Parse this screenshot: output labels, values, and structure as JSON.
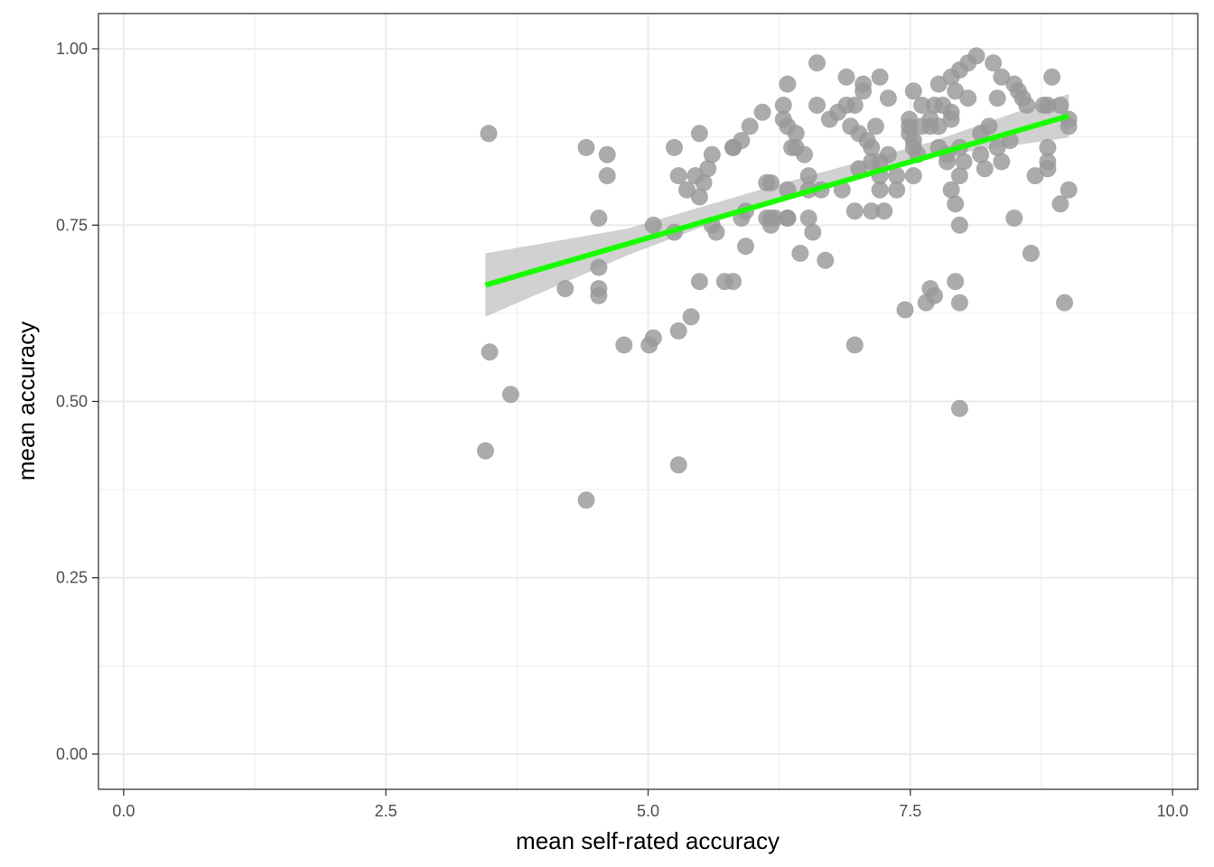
{
  "chart_data": {
    "type": "scatter",
    "title": "",
    "xlabel": "mean self-rated accuracy",
    "ylabel": "mean accuracy",
    "xlim": [
      -0.24,
      10.24
    ],
    "ylim": [
      -0.05,
      1.05
    ],
    "x_ticks": [
      0.0,
      2.5,
      5.0,
      7.5,
      10.0
    ],
    "x_tick_labels": [
      "0.0",
      "2.5",
      "5.0",
      "7.5",
      "10.0"
    ],
    "y_ticks": [
      0.0,
      0.25,
      0.5,
      0.75,
      1.0
    ],
    "y_tick_labels": [
      "0.00",
      "0.25",
      "0.50",
      "0.75",
      "1.00"
    ],
    "grid": true,
    "theme": "bw",
    "point_color": "#999999",
    "line_color": "#19ff00",
    "band_color": "#bdbdbd",
    "points": [
      [
        3.45,
        0.43
      ],
      [
        3.48,
        0.88
      ],
      [
        3.49,
        0.57
      ],
      [
        3.69,
        0.51
      ],
      [
        4.21,
        0.66
      ],
      [
        4.41,
        0.36
      ],
      [
        4.41,
        0.86
      ],
      [
        4.53,
        0.76
      ],
      [
        4.53,
        0.69
      ],
      [
        4.53,
        0.66
      ],
      [
        4.53,
        0.65
      ],
      [
        4.61,
        0.85
      ],
      [
        4.61,
        0.82
      ],
      [
        4.77,
        0.58
      ],
      [
        5.01,
        0.58
      ],
      [
        5.05,
        0.59
      ],
      [
        5.05,
        0.75
      ],
      [
        5.25,
        0.74
      ],
      [
        5.25,
        0.86
      ],
      [
        5.29,
        0.82
      ],
      [
        5.29,
        0.6
      ],
      [
        5.29,
        0.41
      ],
      [
        5.37,
        0.8
      ],
      [
        5.41,
        0.62
      ],
      [
        5.45,
        0.82
      ],
      [
        5.49,
        0.79
      ],
      [
        5.49,
        0.88
      ],
      [
        5.49,
        0.67
      ],
      [
        5.53,
        0.81
      ],
      [
        5.57,
        0.83
      ],
      [
        5.61,
        0.85
      ],
      [
        5.61,
        0.75
      ],
      [
        5.65,
        0.74
      ],
      [
        5.73,
        0.67
      ],
      [
        5.81,
        0.67
      ],
      [
        5.81,
        0.86
      ],
      [
        5.81,
        0.86
      ],
      [
        5.89,
        0.87
      ],
      [
        5.89,
        0.76
      ],
      [
        5.93,
        0.77
      ],
      [
        5.93,
        0.72
      ],
      [
        5.97,
        0.89
      ],
      [
        6.09,
        0.91
      ],
      [
        6.13,
        0.81
      ],
      [
        6.13,
        0.76
      ],
      [
        6.17,
        0.81
      ],
      [
        6.17,
        0.76
      ],
      [
        6.17,
        0.75
      ],
      [
        6.21,
        0.76
      ],
      [
        6.29,
        0.92
      ],
      [
        6.29,
        0.9
      ],
      [
        6.33,
        0.95
      ],
      [
        6.33,
        0.89
      ],
      [
        6.33,
        0.8
      ],
      [
        6.33,
        0.76
      ],
      [
        6.33,
        0.76
      ],
      [
        6.37,
        0.86
      ],
      [
        6.41,
        0.88
      ],
      [
        6.41,
        0.86
      ],
      [
        6.45,
        0.71
      ],
      [
        6.49,
        0.85
      ],
      [
        6.53,
        0.82
      ],
      [
        6.53,
        0.8
      ],
      [
        6.53,
        0.76
      ],
      [
        6.57,
        0.74
      ],
      [
        6.61,
        0.98
      ],
      [
        6.61,
        0.92
      ],
      [
        6.65,
        0.8
      ],
      [
        6.69,
        0.7
      ],
      [
        6.73,
        0.9
      ],
      [
        6.81,
        0.91
      ],
      [
        6.85,
        0.8
      ],
      [
        6.89,
        0.96
      ],
      [
        6.89,
        0.92
      ],
      [
        6.93,
        0.89
      ],
      [
        6.97,
        0.92
      ],
      [
        6.97,
        0.77
      ],
      [
        6.97,
        0.58
      ],
      [
        7.01,
        0.88
      ],
      [
        7.01,
        0.83
      ],
      [
        7.05,
        0.95
      ],
      [
        7.05,
        0.94
      ],
      [
        7.09,
        0.87
      ],
      [
        7.13,
        0.86
      ],
      [
        7.13,
        0.84
      ],
      [
        7.13,
        0.77
      ],
      [
        7.17,
        0.89
      ],
      [
        7.21,
        0.96
      ],
      [
        7.21,
        0.84
      ],
      [
        7.21,
        0.82
      ],
      [
        7.21,
        0.8
      ],
      [
        7.25,
        0.77
      ],
      [
        7.29,
        0.93
      ],
      [
        7.29,
        0.85
      ],
      [
        7.37,
        0.82
      ],
      [
        7.37,
        0.8
      ],
      [
        7.45,
        0.63
      ],
      [
        7.49,
        0.9
      ],
      [
        7.49,
        0.89
      ],
      [
        7.49,
        0.88
      ],
      [
        7.53,
        0.94
      ],
      [
        7.53,
        0.87
      ],
      [
        7.53,
        0.86
      ],
      [
        7.53,
        0.82
      ],
      [
        7.57,
        0.85
      ],
      [
        7.61,
        0.92
      ],
      [
        7.61,
        0.89
      ],
      [
        7.65,
        0.64
      ],
      [
        7.69,
        0.9
      ],
      [
        7.69,
        0.89
      ],
      [
        7.69,
        0.66
      ],
      [
        7.73,
        0.65
      ],
      [
        7.73,
        0.92
      ],
      [
        7.77,
        0.95
      ],
      [
        7.77,
        0.89
      ],
      [
        7.77,
        0.86
      ],
      [
        7.81,
        0.92
      ],
      [
        7.85,
        0.85
      ],
      [
        7.85,
        0.84
      ],
      [
        7.89,
        0.96
      ],
      [
        7.89,
        0.91
      ],
      [
        7.89,
        0.9
      ],
      [
        7.89,
        0.8
      ],
      [
        7.93,
        0.94
      ],
      [
        7.93,
        0.78
      ],
      [
        7.93,
        0.67
      ],
      [
        7.97,
        0.97
      ],
      [
        7.97,
        0.86
      ],
      [
        7.97,
        0.82
      ],
      [
        7.97,
        0.75
      ],
      [
        7.97,
        0.64
      ],
      [
        7.97,
        0.49
      ],
      [
        8.01,
        0.84
      ],
      [
        8.05,
        0.98
      ],
      [
        8.05,
        0.93
      ],
      [
        8.13,
        0.99
      ],
      [
        8.17,
        0.88
      ],
      [
        8.17,
        0.85
      ],
      [
        8.21,
        0.83
      ],
      [
        8.25,
        0.89
      ],
      [
        8.29,
        0.98
      ],
      [
        8.33,
        0.93
      ],
      [
        8.33,
        0.86
      ],
      [
        8.37,
        0.96
      ],
      [
        8.37,
        0.84
      ],
      [
        8.45,
        0.87
      ],
      [
        8.49,
        0.95
      ],
      [
        8.49,
        0.76
      ],
      [
        8.53,
        0.94
      ],
      [
        8.57,
        0.93
      ],
      [
        8.61,
        0.92
      ],
      [
        8.65,
        0.71
      ],
      [
        8.69,
        0.82
      ],
      [
        8.77,
        0.92
      ],
      [
        8.81,
        0.92
      ],
      [
        8.81,
        0.86
      ],
      [
        8.81,
        0.84
      ],
      [
        8.81,
        0.83
      ],
      [
        8.85,
        0.96
      ],
      [
        8.93,
        0.92
      ],
      [
        8.93,
        0.78
      ],
      [
        8.97,
        0.64
      ],
      [
        9.01,
        0.9
      ],
      [
        9.01,
        0.89
      ],
      [
        9.01,
        0.8
      ]
    ],
    "fit": {
      "method": "lm",
      "x": [
        3.45,
        9.01
      ],
      "y": [
        0.665,
        0.905
      ],
      "band_x": [
        3.45,
        4.8,
        6.25,
        7.7,
        9.01
      ],
      "band_lower": [
        0.62,
        0.707,
        0.789,
        0.847,
        0.874
      ],
      "band_upper": [
        0.71,
        0.745,
        0.808,
        0.868,
        0.936
      ]
    }
  }
}
